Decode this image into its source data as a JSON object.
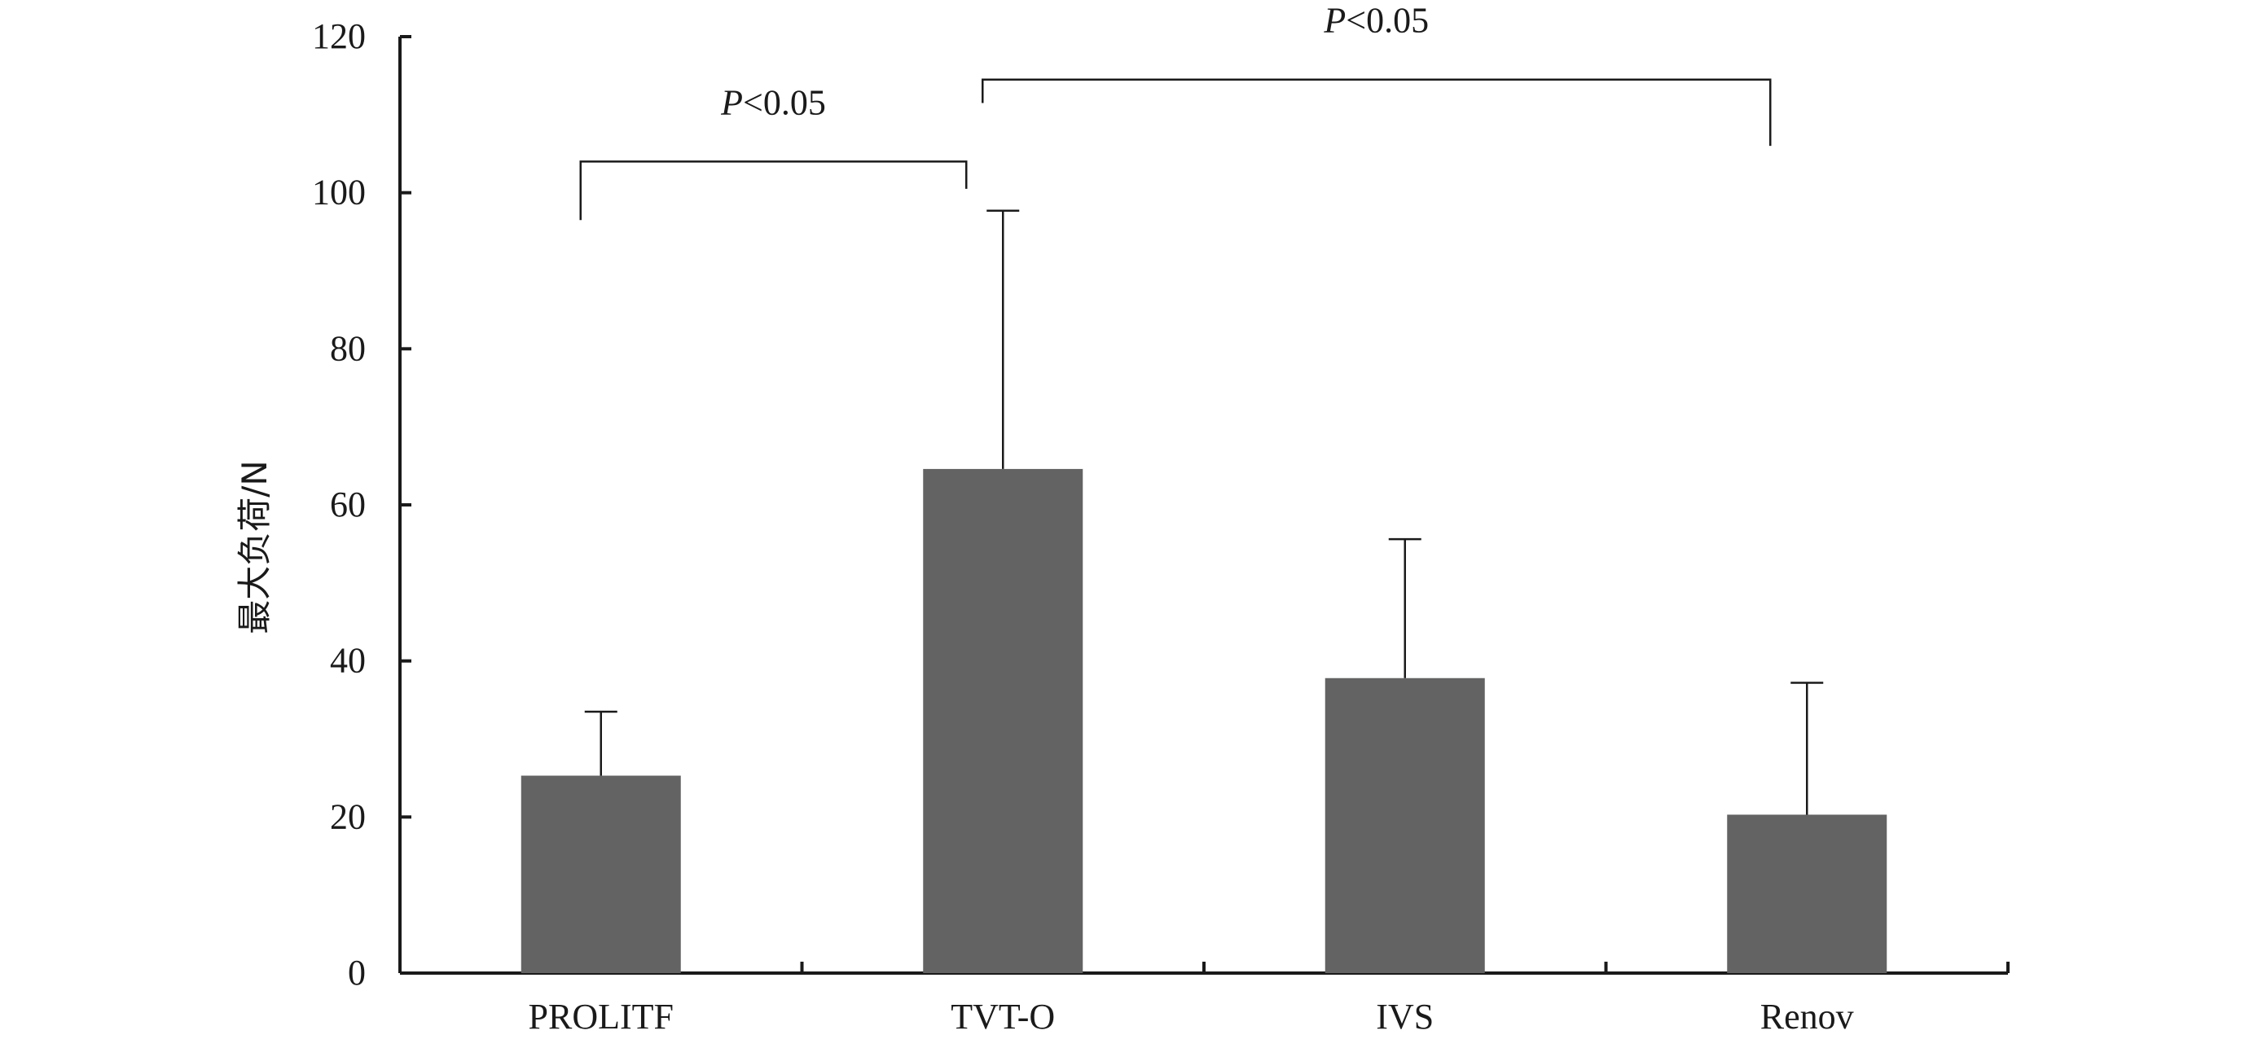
{
  "chart_data": {
    "type": "bar",
    "categories": [
      "PROLITF",
      "TVT-O",
      "IVS",
      "Renov"
    ],
    "values": [
      25.3,
      64.6,
      37.8,
      20.3
    ],
    "error_upper": [
      33.5,
      97.7,
      55.6,
      37.2
    ],
    "ylabel": "最大负荷/N",
    "xlabel": "",
    "ylim": [
      0,
      120
    ],
    "yticks": [
      "0",
      "20",
      "40",
      "60",
      "80",
      "100",
      "120"
    ],
    "bar_color": "#646363",
    "grid": false,
    "significance": [
      {
        "from": "PROLITF",
        "to": "TVT-O",
        "label_italic": "P",
        "label_rest": "<0.05",
        "bracket_y": 104,
        "left_drop": 96.5,
        "right_drop": 100.5
      },
      {
        "from": "TVT-O",
        "to": "Renov",
        "label_italic": "P",
        "label_rest": "<0.05",
        "bracket_y": 114.5,
        "left_drop": 111.5,
        "right_drop": 106
      }
    ]
  }
}
